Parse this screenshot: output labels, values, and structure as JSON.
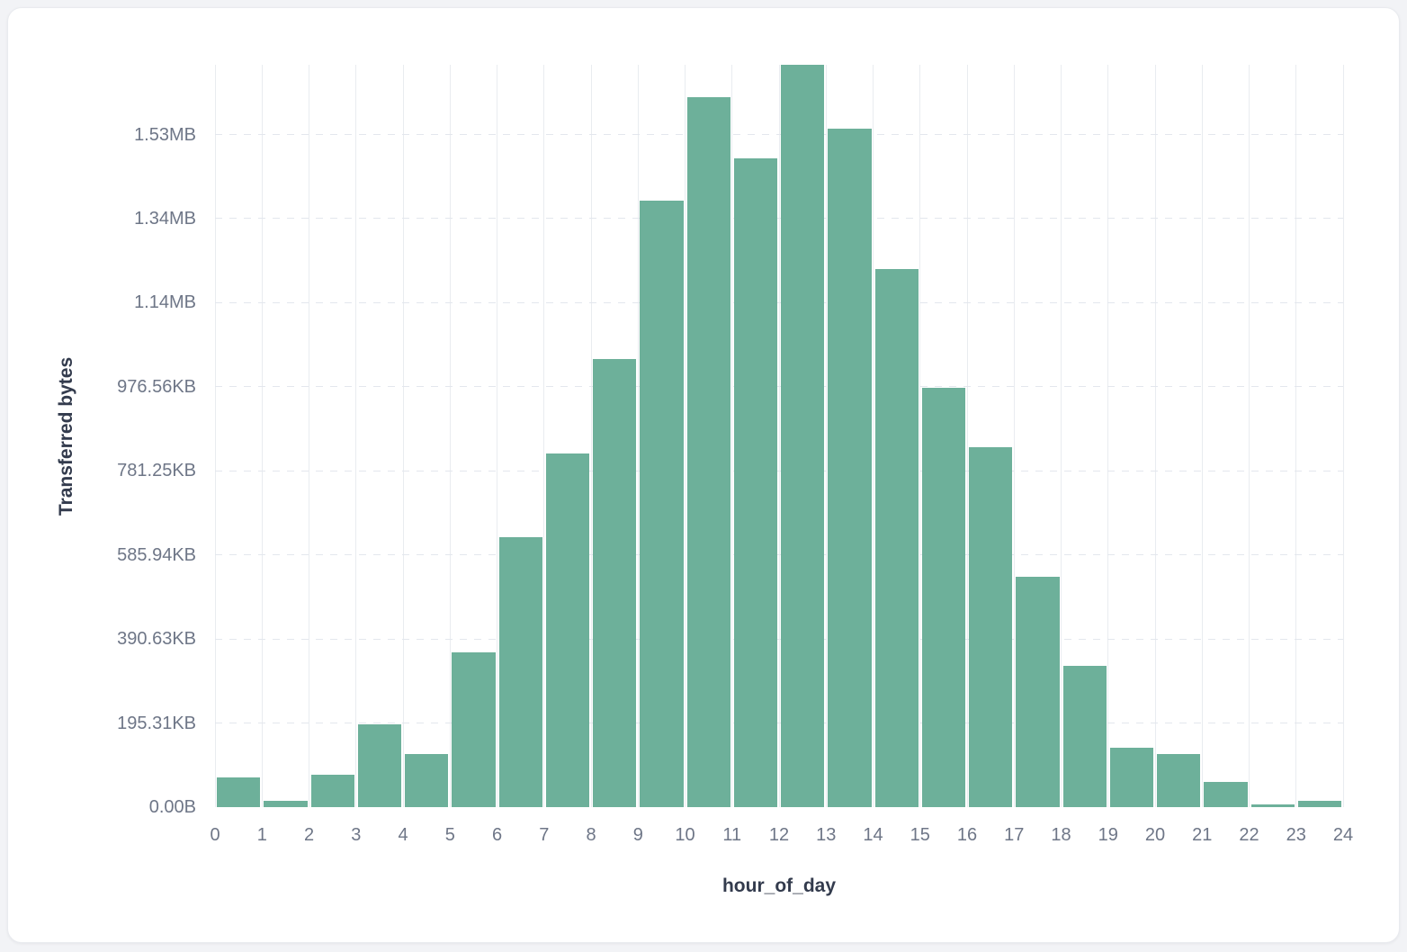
{
  "page": {
    "background_color": "#f2f3f6",
    "card_background_color": "#ffffff"
  },
  "chart_data": {
    "type": "bar",
    "title": "",
    "xlabel": "hour_of_day",
    "ylabel": "Transferred bytes",
    "categories": [
      0,
      1,
      2,
      3,
      4,
      5,
      6,
      7,
      8,
      9,
      10,
      11,
      12,
      13,
      14,
      15,
      16,
      17,
      18,
      19,
      20,
      21,
      22,
      23
    ],
    "values": [
      71500,
      16000,
      78000,
      197000,
      126500,
      368000,
      642000,
      841000,
      1066000,
      1443000,
      1690000,
      1544000,
      1766000,
      1613000,
      1280000,
      998000,
      856000,
      548000,
      336000,
      141000,
      126000,
      59000,
      6000,
      14500
    ],
    "values_unit": "bytes",
    "ylim": [
      0,
      1766000
    ],
    "y_ticks": [
      {
        "label": "0.00B",
        "value": 0
      },
      {
        "label": "195.31KB",
        "value": 200000
      },
      {
        "label": "390.63KB",
        "value": 400000
      },
      {
        "label": "585.94KB",
        "value": 600000
      },
      {
        "label": "781.25KB",
        "value": 800000
      },
      {
        "label": "976.56KB",
        "value": 1000000
      },
      {
        "label": "1.14MB",
        "value": 1200000
      },
      {
        "label": "1.34MB",
        "value": 1400000
      },
      {
        "label": "1.53MB",
        "value": 1600000
      }
    ],
    "x_tick_labels": [
      "0",
      "1",
      "2",
      "3",
      "4",
      "5",
      "6",
      "7",
      "8",
      "9",
      "10",
      "11",
      "12",
      "13",
      "14",
      "15",
      "16",
      "17",
      "18",
      "19",
      "20",
      "21",
      "22",
      "23",
      "24"
    ],
    "bar_color": "#6DB09A",
    "grid": {
      "horizontal": "dashed",
      "vertical": "solid"
    },
    "legend": false
  }
}
